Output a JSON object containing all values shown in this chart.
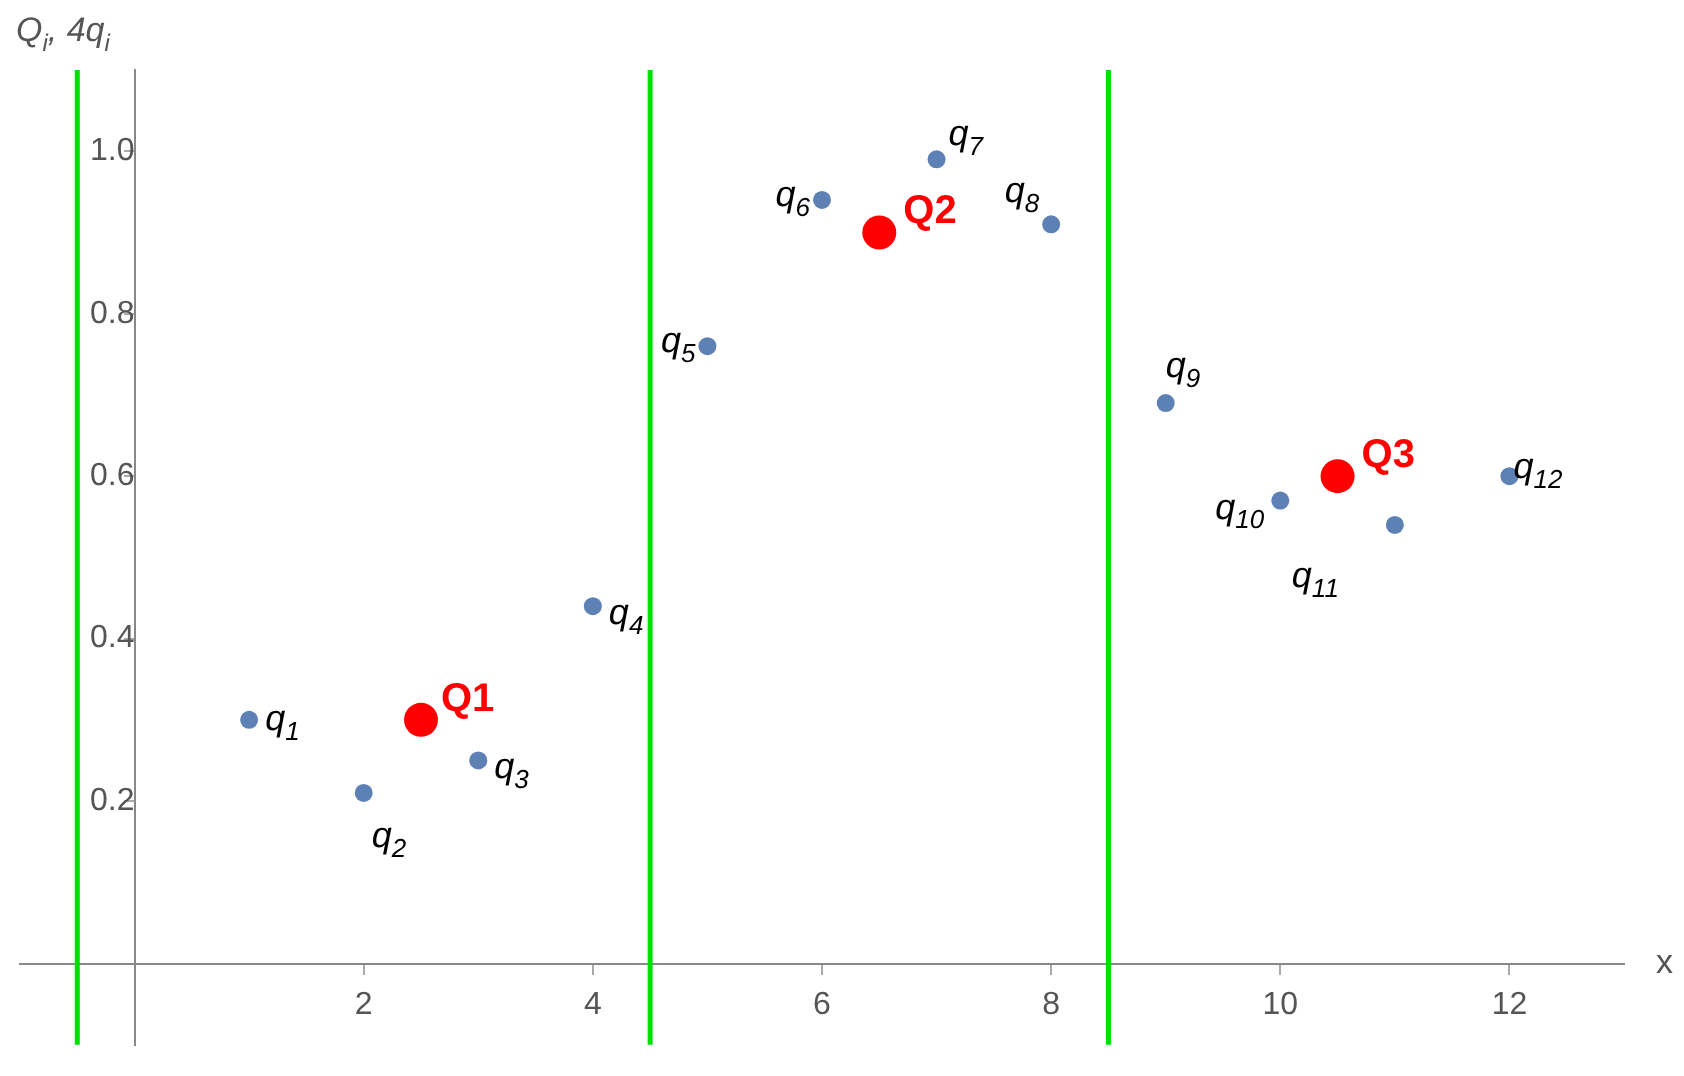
{
  "chart_data": {
    "type": "scatter",
    "xlabel": "x",
    "ylabel": "Q$_{i}$, 4q$_{i}$",
    "marker": "circle",
    "xlim": [
      -1,
      13
    ],
    "ylim": [
      -0.1,
      1.1
    ],
    "xticks": [
      2,
      4,
      6,
      8,
      10,
      12
    ],
    "yticks": [
      0.2,
      0.4,
      0.6,
      0.8,
      {
        "value": 1,
        "label": "1.0"
      }
    ],
    "series": [
      {
        "color": "#5e81b5",
        "x": [
          1,
          2,
          3,
          4,
          5,
          6,
          7,
          8,
          9,
          10,
          11,
          12
        ],
        "values": [
          0.3,
          0.21,
          0.25,
          0.44,
          0.76,
          0.94,
          0.99,
          0.91,
          0.69,
          0.57,
          0.54,
          0.6
        ]
      },
      {
        "color": "#ff0000",
        "x": [
          2.5,
          6.5,
          10.5
        ],
        "values": [
          0.3,
          0.9,
          0.6
        ]
      }
    ],
    "ref_lines": [
      {
        "axis": "x",
        "value": -0.5,
        "color": "#00e000"
      },
      {
        "axis": "x",
        "value": 4.5,
        "color": "#00e000"
      },
      {
        "axis": "x",
        "value": 8.5,
        "color": "#00e000"
      }
    ],
    "annotations": [
      {
        "text": "q$_{1}$",
        "x": 1,
        "y": 0.3
      },
      {
        "text": "q$_{2}$",
        "x": 2,
        "y": 0.21
      },
      {
        "text": "q$_{3}$",
        "x": 3,
        "y": 0.25
      },
      {
        "text": "q$_{4}$",
        "x": 4,
        "y": 0.44
      },
      {
        "text": "q$_{5}$",
        "x": 5,
        "y": 0.76
      },
      {
        "text": "q$_{6}$",
        "x": 6,
        "y": 0.94
      },
      {
        "text": "q$_{7}$",
        "x": 7,
        "y": 0.99
      },
      {
        "text": "q$_{8}$",
        "x": 8,
        "y": 0.91
      },
      {
        "text": "q$_{9}$",
        "x": 9,
        "y": 0.69
      },
      {
        "text": "q$_{10}$",
        "x": 10,
        "y": 0.57
      },
      {
        "text": "q$_{11}$",
        "x": 11,
        "y": 0.54
      },
      {
        "text": "q$_{12}$",
        "x": 12,
        "y": 0.6
      },
      {
        "text": "Q1",
        "x": 2.5,
        "y": 0.3
      },
      {
        "text": "Q2",
        "x": 6.5,
        "y": 0.9
      },
      {
        "text": "Q3",
        "x": 10.5,
        "y": 0.6
      }
    ]
  }
}
